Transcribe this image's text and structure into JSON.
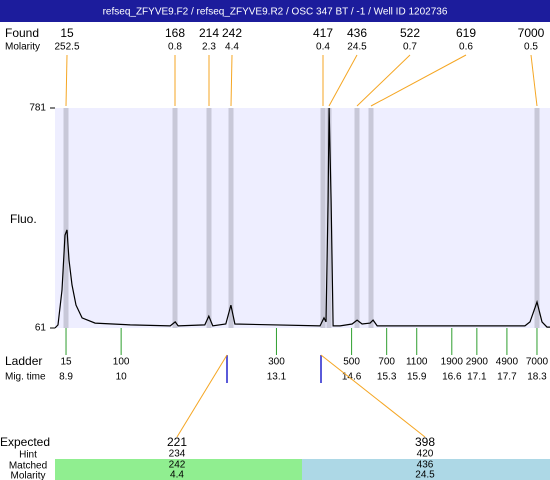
{
  "header": {
    "title": "refseq_ZFYVE9.F2 / refseq_ZFYVE9.R2 / OSC 347 BT / -1 / Well ID 1202736"
  },
  "found": {
    "label": "Found",
    "molarity_label": "Molarity",
    "sizes": [
      "15",
      "168",
      "214",
      "242",
      "417",
      "436",
      "522",
      "619",
      "7000"
    ],
    "molarity": [
      "252.5",
      "0.8",
      "2.3",
      "4.4",
      "0.4",
      "24.5",
      "0.7",
      "0.6",
      "0.5"
    ]
  },
  "chart_data": {
    "type": "line",
    "y_label": "Fluo.",
    "x": [
      8.68,
      8.74,
      8.82,
      8.88,
      8.92,
      8.96,
      9.02,
      9.1,
      9.22,
      9.48,
      10.18,
      10.98,
      11.08,
      11.14,
      11.67,
      11.75,
      11.83,
      12.09,
      12.19,
      12.27,
      13.97,
      14.05,
      14.09,
      14.13,
      14.15,
      14.19,
      14.23,
      14.37,
      14.61,
      14.71,
      14.81,
      14.97,
      15.03,
      15.11,
      18.06,
      18.16,
      18.3,
      18.4,
      18.5,
      18.56
    ],
    "values": [
      61,
      71,
      185,
      365,
      382,
      284,
      202,
      136,
      94,
      77,
      71,
      68,
      81,
      68,
      71,
      100,
      68,
      74,
      136,
      74,
      68,
      94,
      81,
      480,
      781,
      480,
      68,
      68,
      74,
      87,
      74,
      77,
      87,
      68,
      68,
      81,
      146,
      81,
      64,
      64
    ],
    "color": "#000000",
    "xlim": [
      8.68,
      18.56
    ],
    "ylim": [
      61,
      781
    ],
    "yticks": [
      781,
      61
    ]
  },
  "ladder": {
    "label": "Ladder",
    "time_label": "Mig. time",
    "sizes": [
      "15",
      "100",
      "300",
      "500",
      "700",
      "1100",
      "1900",
      "2900",
      "4900",
      "7000"
    ],
    "times": [
      8.9,
      10,
      13.1,
      14.6,
      15.3,
      15.9,
      16.6,
      17.1,
      17.7,
      18.3
    ]
  },
  "expected": {
    "label": "Expected",
    "hint_label": "Hint",
    "matched_label": "Matched",
    "molarity_label": "Molarity",
    "sizes": [
      "221",
      "398"
    ],
    "hint": [
      "234",
      "420"
    ],
    "matched": [
      "242",
      "436"
    ],
    "molarity": [
      "4.4",
      "24.5"
    ]
  }
}
